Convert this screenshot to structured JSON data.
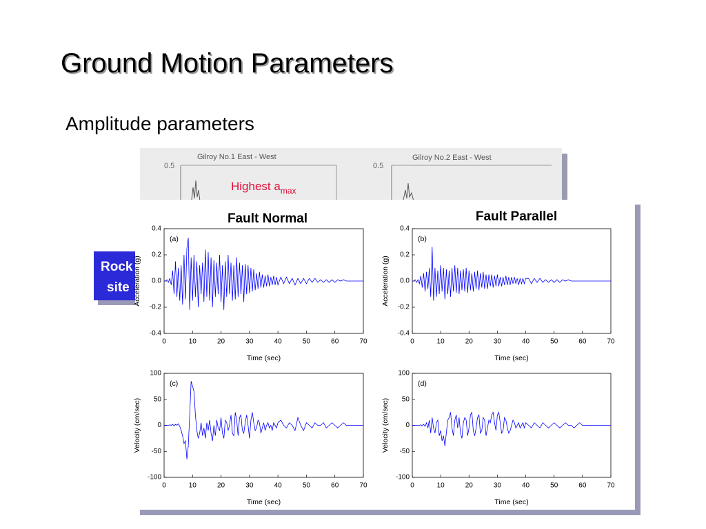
{
  "slide": {
    "title": "Ground Motion Parameters",
    "subtitle": "Amplitude parameters",
    "background_figure": {
      "panel_titles": [
        "Gilroy No.1 East - West",
        "Gilroy No.2 East - West"
      ],
      "tick_labels": [
        "0.5",
        "0.5"
      ],
      "annotation": {
        "text": "Highest a",
        "subscript": "max"
      }
    },
    "side_box": {
      "lines": [
        "Rock",
        "site"
      ]
    },
    "column_titles": [
      "Fault Normal",
      "Fault Parallel"
    ]
  },
  "chart_data": [
    {
      "type": "line",
      "panel_label": "(a)",
      "xlabel": "Time (sec)",
      "ylabel": "Acceleration (g)",
      "xlim": [
        0,
        70
      ],
      "xticks": [
        0,
        10,
        20,
        30,
        40,
        50,
        60,
        70
      ],
      "ylim": [
        -0.4,
        0.4
      ],
      "yticks": [
        -0.4,
        -0.2,
        {
          "value": 0,
          "label": "0.0"
        },
        0.2,
        0.4
      ],
      "x": [
        0,
        0.5,
        1,
        1.5,
        2,
        2.5,
        3,
        3.5,
        4,
        4.5,
        5,
        5.5,
        6,
        6.5,
        7,
        7.5,
        8,
        8.5,
        9,
        9.5,
        10,
        10.5,
        11,
        11.5,
        12,
        12.5,
        13,
        13.5,
        14,
        14.5,
        15,
        15.5,
        16,
        16.5,
        17,
        17.5,
        18,
        18.5,
        19,
        19.5,
        20,
        20.5,
        21,
        21.5,
        22,
        22.5,
        23,
        23.5,
        24,
        24.5,
        25,
        25.5,
        26,
        26.5,
        27,
        27.5,
        28,
        28.5,
        29,
        29.5,
        30,
        30.5,
        31,
        31.5,
        32,
        32.5,
        33,
        33.5,
        34,
        34.5,
        35,
        35.5,
        36,
        36.5,
        37,
        37.5,
        38,
        38.5,
        39,
        39.5,
        40,
        41,
        42,
        43,
        44,
        45,
        46,
        47,
        48,
        49,
        50,
        51,
        52,
        53,
        54,
        55,
        56,
        57,
        58,
        59,
        60,
        61,
        62,
        63,
        64,
        65,
        66,
        67,
        68,
        69,
        70
      ],
      "series": [
        {
          "color": "#0000ff",
          "values": [
            0,
            0,
            0.01,
            -0.01,
            0.02,
            -0.03,
            0.08,
            -0.1,
            0.15,
            -0.12,
            0.1,
            -0.15,
            0.12,
            -0.18,
            0.2,
            -0.14,
            0.25,
            0.33,
            -0.22,
            0.18,
            -0.15,
            0.2,
            -0.12,
            0.15,
            -0.2,
            0.12,
            -0.1,
            0.14,
            -0.16,
            0.24,
            -0.12,
            0.22,
            -0.15,
            0.18,
            -0.2,
            0.16,
            -0.12,
            0.14,
            -0.1,
            0.2,
            -0.16,
            0.12,
            -0.22,
            0.15,
            -0.12,
            0.2,
            -0.1,
            0.14,
            -0.15,
            0.12,
            -0.14,
            0.18,
            -0.12,
            0.14,
            -0.1,
            0.12,
            -0.16,
            0.13,
            -0.1,
            0.12,
            -0.09,
            0.1,
            -0.08,
            0.09,
            -0.07,
            0.06,
            -0.06,
            0.07,
            -0.05,
            0.05,
            -0.05,
            0.04,
            -0.04,
            0.05,
            -0.04,
            0.03,
            -0.03,
            0.04,
            -0.03,
            0.03,
            -0.03,
            0.03,
            -0.02,
            0.03,
            -0.02,
            0.02,
            -0.03,
            0.02,
            -0.02,
            0.02,
            -0.02,
            0.02,
            -0.01,
            0.02,
            -0.01,
            0.01,
            -0.01,
            0.01,
            -0.01,
            0.01,
            -0.01,
            0.01,
            0,
            0.01,
            0,
            0,
            0,
            0,
            0,
            0,
            0
          ]
        }
      ]
    },
    {
      "type": "line",
      "panel_label": "(b)",
      "xlabel": "Time (sec)",
      "ylabel": "Acceleration (g)",
      "xlim": [
        0,
        70
      ],
      "xticks": [
        0,
        10,
        20,
        30,
        40,
        50,
        60,
        70
      ],
      "ylim": [
        -0.4,
        0.4
      ],
      "yticks": [
        -0.4,
        -0.2,
        {
          "value": 0,
          "label": "0.0"
        },
        0.2,
        0.4
      ],
      "x": [
        0,
        0.5,
        1,
        1.5,
        2,
        2.5,
        3,
        3.5,
        4,
        4.5,
        5,
        5.5,
        6,
        6.5,
        7,
        7.5,
        8,
        8.5,
        9,
        9.5,
        10,
        10.5,
        11,
        11.5,
        12,
        12.5,
        13,
        13.5,
        14,
        14.5,
        15,
        15.5,
        16,
        16.5,
        17,
        17.5,
        18,
        18.5,
        19,
        19.5,
        20,
        20.5,
        21,
        21.5,
        22,
        22.5,
        23,
        23.5,
        24,
        24.5,
        25,
        25.5,
        26,
        26.5,
        27,
        27.5,
        28,
        28.5,
        29,
        29.5,
        30,
        30.5,
        31,
        31.5,
        32,
        32.5,
        33,
        33.5,
        34,
        34.5,
        35,
        35.5,
        36,
        36.5,
        37,
        37.5,
        38,
        38.5,
        39,
        39.5,
        40,
        41,
        42,
        43,
        44,
        45,
        46,
        47,
        48,
        49,
        50,
        51,
        52,
        53,
        54,
        55,
        56,
        57,
        58,
        59,
        60,
        61,
        62,
        63,
        64,
        65,
        66,
        67,
        68,
        69,
        70
      ],
      "series": [
        {
          "color": "#0000ff",
          "values": [
            0,
            0,
            0.01,
            -0.01,
            0.01,
            -0.02,
            0.04,
            -0.05,
            0.06,
            -0.08,
            0.07,
            -0.06,
            0.1,
            -0.12,
            0.26,
            -0.15,
            0.1,
            -0.12,
            0.08,
            -0.1,
            0.12,
            -0.08,
            0.1,
            -0.14,
            0.09,
            -0.1,
            0.08,
            -0.12,
            0.1,
            -0.08,
            0.12,
            -0.09,
            0.1,
            -0.1,
            0.08,
            -0.07,
            0.09,
            -0.08,
            0.1,
            -0.09,
            0.08,
            -0.07,
            0.06,
            -0.08,
            0.07,
            -0.06,
            0.08,
            -0.07,
            0.06,
            -0.05,
            0.07,
            -0.06,
            0.05,
            -0.06,
            0.05,
            -0.04,
            0.05,
            -0.05,
            0.04,
            -0.04,
            0.05,
            -0.04,
            0.03,
            -0.04,
            0.03,
            -0.03,
            0.04,
            -0.03,
            0.03,
            -0.03,
            0.03,
            -0.02,
            0.03,
            -0.02,
            0.02,
            -0.03,
            0.02,
            -0.02,
            0.02,
            -0.02,
            0.02,
            0.02,
            -0.02,
            0.02,
            -0.01,
            0.02,
            -0.01,
            0.01,
            -0.01,
            0.01,
            -0.01,
            0.01,
            -0.01,
            0.01,
            0,
            0.01,
            0,
            0,
            0,
            0,
            0,
            0,
            0,
            0,
            0,
            0,
            0,
            0,
            0,
            0,
            0
          ]
        }
      ]
    },
    {
      "type": "line",
      "panel_label": "(c)",
      "xlabel": "Time (sec)",
      "ylabel": "Velocity (cm/sec)",
      "xlim": [
        0,
        70
      ],
      "xticks": [
        0,
        10,
        20,
        30,
        40,
        50,
        60,
        70
      ],
      "ylim": [
        -100,
        100
      ],
      "yticks": [
        -100,
        -50,
        0,
        50,
        100
      ],
      "x": [
        0,
        0.5,
        1,
        1.5,
        2,
        2.5,
        3,
        3.5,
        4,
        4.5,
        5,
        5.5,
        6,
        6.5,
        7,
        7.5,
        8,
        8.5,
        9,
        9.5,
        10,
        10.5,
        11,
        11.5,
        12,
        12.5,
        13,
        13.5,
        14,
        14.5,
        15,
        15.5,
        16,
        16.5,
        17,
        17.5,
        18,
        18.5,
        19,
        19.5,
        20,
        20.5,
        21,
        21.5,
        22,
        22.5,
        23,
        23.5,
        24,
        24.5,
        25,
        25.5,
        26,
        26.5,
        27,
        27.5,
        28,
        28.5,
        29,
        29.5,
        30,
        30.5,
        31,
        31.5,
        32,
        32.5,
        33,
        33.5,
        34,
        34.5,
        35,
        35.5,
        36,
        36.5,
        37,
        37.5,
        38,
        38.5,
        39,
        39.5,
        40,
        41,
        42,
        43,
        44,
        45,
        46,
        47,
        48,
        49,
        50,
        51,
        52,
        53,
        54,
        55,
        56,
        57,
        58,
        59,
        60,
        61,
        62,
        63,
        64,
        65,
        66,
        67,
        68,
        69,
        70
      ],
      "series": [
        {
          "color": "#0000ff",
          "values": [
            0,
            0,
            0,
            0,
            1,
            0,
            2,
            -1,
            2,
            0,
            3,
            -2,
            -10,
            -20,
            -35,
            -30,
            -65,
            -40,
            20,
            85,
            75,
            65,
            20,
            -10,
            -25,
            -15,
            5,
            -20,
            -5,
            -25,
            5,
            -10,
            10,
            -15,
            -30,
            0,
            -20,
            10,
            -5,
            -10,
            15,
            -15,
            -25,
            10,
            5,
            -10,
            0,
            20,
            -15,
            -20,
            25,
            10,
            -20,
            15,
            20,
            -10,
            -15,
            5,
            20,
            0,
            -25,
            10,
            25,
            5,
            -10,
            -5,
            10,
            5,
            -15,
            -5,
            5,
            -10,
            0,
            5,
            -5,
            0,
            -10,
            5,
            0,
            -5,
            5,
            10,
            0,
            -5,
            5,
            0,
            -10,
            15,
            0,
            -10,
            5,
            0,
            -5,
            5,
            0,
            0,
            5,
            -5,
            0,
            5,
            0,
            -5,
            0,
            5,
            0,
            0,
            0,
            0,
            0,
            0,
            0
          ]
        }
      ]
    },
    {
      "type": "line",
      "panel_label": "(d)",
      "xlabel": "Time (sec)",
      "ylabel": "Velocity (cm/sec)",
      "xlim": [
        0,
        70
      ],
      "xticks": [
        0,
        10,
        20,
        30,
        40,
        50,
        60,
        70
      ],
      "ylim": [
        -100,
        100
      ],
      "yticks": [
        -100,
        -50,
        0,
        50,
        100
      ],
      "x": [
        0,
        0.5,
        1,
        1.5,
        2,
        2.5,
        3,
        3.5,
        4,
        4.5,
        5,
        5.5,
        6,
        6.5,
        7,
        7.5,
        8,
        8.5,
        9,
        9.5,
        10,
        10.5,
        11,
        11.5,
        12,
        12.5,
        13,
        13.5,
        14,
        14.5,
        15,
        15.5,
        16,
        16.5,
        17,
        17.5,
        18,
        18.5,
        19,
        19.5,
        20,
        20.5,
        21,
        21.5,
        22,
        22.5,
        23,
        23.5,
        24,
        24.5,
        25,
        25.5,
        26,
        26.5,
        27,
        27.5,
        28,
        28.5,
        29,
        29.5,
        30,
        30.5,
        31,
        31.5,
        32,
        32.5,
        33,
        33.5,
        34,
        34.5,
        35,
        35.5,
        36,
        36.5,
        37,
        37.5,
        38,
        38.5,
        39,
        39.5,
        40,
        41,
        42,
        43,
        44,
        45,
        46,
        47,
        48,
        49,
        50,
        51,
        52,
        53,
        54,
        55,
        56,
        57,
        58,
        59,
        60,
        61,
        62,
        63,
        64,
        65,
        66,
        67,
        68,
        69,
        70
      ],
      "series": [
        {
          "color": "#0000ff",
          "values": [
            0,
            0,
            0,
            0,
            0,
            0,
            1,
            -1,
            2,
            -2,
            5,
            -5,
            10,
            -15,
            15,
            -5,
            -15,
            5,
            10,
            -20,
            -10,
            -30,
            -20,
            -40,
            -15,
            10,
            15,
            25,
            -5,
            -20,
            10,
            20,
            -5,
            15,
            -15,
            -25,
            5,
            15,
            10,
            -20,
            -5,
            20,
            25,
            -10,
            -20,
            -5,
            15,
            20,
            -15,
            -10,
            15,
            10,
            -20,
            -5,
            10,
            5,
            20,
            25,
            5,
            -10,
            20,
            25,
            5,
            -15,
            -10,
            15,
            10,
            -5,
            -15,
            -10,
            0,
            10,
            5,
            -5,
            0,
            5,
            -5,
            0,
            5,
            -5,
            5,
            0,
            -5,
            5,
            0,
            -5,
            5,
            0,
            -5,
            0,
            5,
            0,
            -5,
            0,
            5,
            0,
            0,
            -5,
            0,
            5,
            0,
            0,
            0,
            0,
            0,
            0,
            0,
            0,
            0,
            0,
            0
          ]
        }
      ]
    }
  ]
}
